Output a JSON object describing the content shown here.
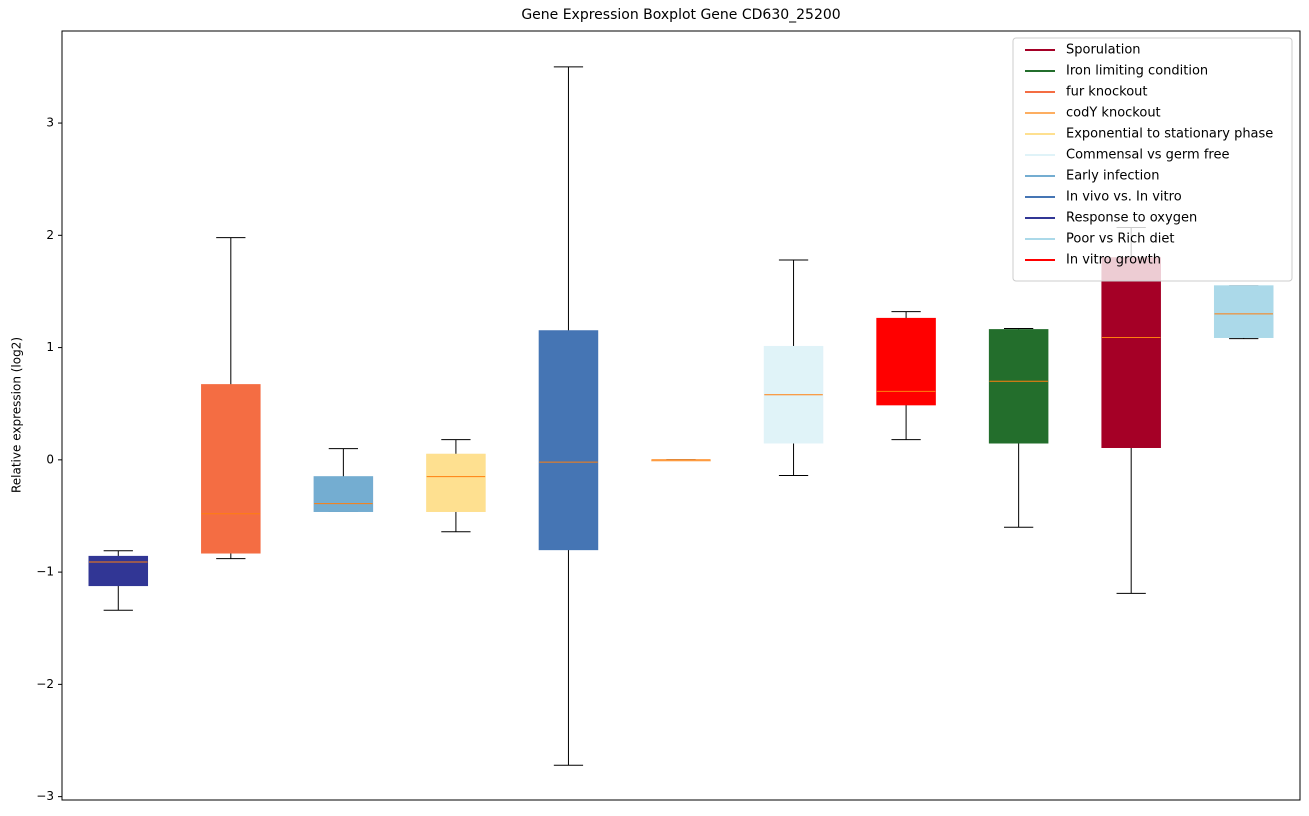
{
  "chart_data": {
    "type": "boxplot",
    "title": "Gene Expression Boxplot Gene CD630_25200",
    "y_label": "Relative expression (log2)",
    "ylim": [
      -3.03,
      3.82
    ],
    "yticks": [
      {
        "value": -3,
        "label": "−3"
      },
      {
        "value": -2,
        "label": "−2"
      },
      {
        "value": -1,
        "label": "−1"
      },
      0,
      1,
      2,
      3
    ],
    "xlim": [
      0.5,
      11.5
    ],
    "median_color": "#ff7f0e",
    "legend": "upper right",
    "series": [
      {
        "name": "Sporulation",
        "color": "#a50026",
        "x": 10,
        "low": -1.19,
        "q1": 0.11,
        "median": 1.09,
        "q3": 1.8,
        "high": 2.07
      },
      {
        "name": "Iron limiting condition",
        "color": "#236e2c",
        "x": 9,
        "low": -0.6,
        "q1": 0.15,
        "median": 0.7,
        "q3": 1.16,
        "high": 1.17
      },
      {
        "name": "fur knockout",
        "color": "#f46d43",
        "x": 2,
        "low": -0.88,
        "q1": -0.83,
        "median": -0.48,
        "q3": 0.67,
        "high": 1.98
      },
      {
        "name": "codY knockout",
        "color": "#fdae61",
        "x": 6,
        "low": 0,
        "q1": 0,
        "median": 0,
        "q3": 0,
        "high": 0
      },
      {
        "name": "Exponential to stationary phase",
        "color": "#fee090",
        "x": 4,
        "low": -0.64,
        "q1": -0.46,
        "median": -0.15,
        "q3": 0.05,
        "high": 0.18
      },
      {
        "name": "Commensal vs germ free",
        "color": "#e0f3f8",
        "x": 7,
        "low": -0.14,
        "q1": 0.15,
        "median": 0.58,
        "q3": 1.01,
        "high": 1.78
      },
      {
        "name": "Early infection",
        "color": "#74add1",
        "x": 3,
        "low": -0.46,
        "q1": -0.46,
        "median": -0.39,
        "q3": -0.15,
        "high": 0.1
      },
      {
        "name": "In vivo vs. In vitro",
        "color": "#4575b4",
        "x": 5,
        "low": -2.72,
        "q1": -0.8,
        "median": -0.02,
        "q3": 1.15,
        "high": 3.5
      },
      {
        "name": "Response to oxygen",
        "color": "#313695",
        "x": 1,
        "low": -1.34,
        "q1": -1.12,
        "median": -0.91,
        "q3": -0.86,
        "high": -0.81
      },
      {
        "name": "Poor vs Rich diet",
        "color": "#abd9e9",
        "x": 11,
        "low": 1.08,
        "q1": 1.09,
        "median": 1.3,
        "q3": 1.55,
        "high": 1.55
      },
      {
        "name": "In vitro growth",
        "color": "#ff0000",
        "x": 8,
        "low": 0.18,
        "q1": 0.49,
        "median": 0.61,
        "q3": 1.26,
        "high": 1.32
      }
    ]
  }
}
